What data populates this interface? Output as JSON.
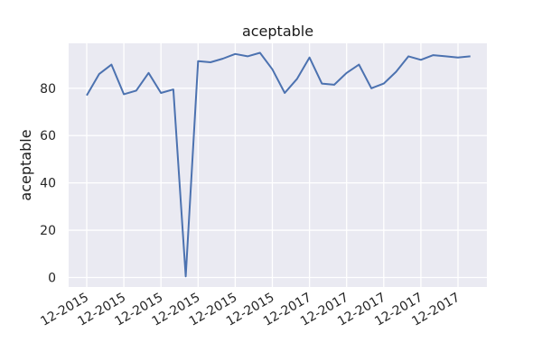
{
  "chart_data": {
    "type": "line",
    "title": "aceptable",
    "xlabel": "",
    "ylabel": "aceptable",
    "x_tick_labels": [
      "12-2015",
      "12-2015",
      "12-2015",
      "12-2015",
      "12-2015",
      "12-2015",
      "12-2017",
      "12-2017",
      "12-2017",
      "12-2017",
      "12-2017"
    ],
    "ylim": [
      -4,
      99
    ],
    "y_ticks": [
      0,
      20,
      40,
      60,
      80
    ],
    "grid": true,
    "series": [
      {
        "color": "#4c72b0",
        "values": [
          77,
          86,
          90,
          77.5,
          79,
          86.5,
          78,
          79.5,
          0.5,
          91.5,
          91,
          92.5,
          94.5,
          93.5,
          95,
          88,
          78,
          84,
          93,
          82,
          81.5,
          86.5,
          90,
          80,
          82,
          87,
          93.5,
          92,
          94,
          93.5,
          93,
          93.5
        ]
      }
    ],
    "colors": {
      "plot_background": "#eaeaf2",
      "grid": "#ffffff",
      "line": "#4c72b0"
    }
  }
}
